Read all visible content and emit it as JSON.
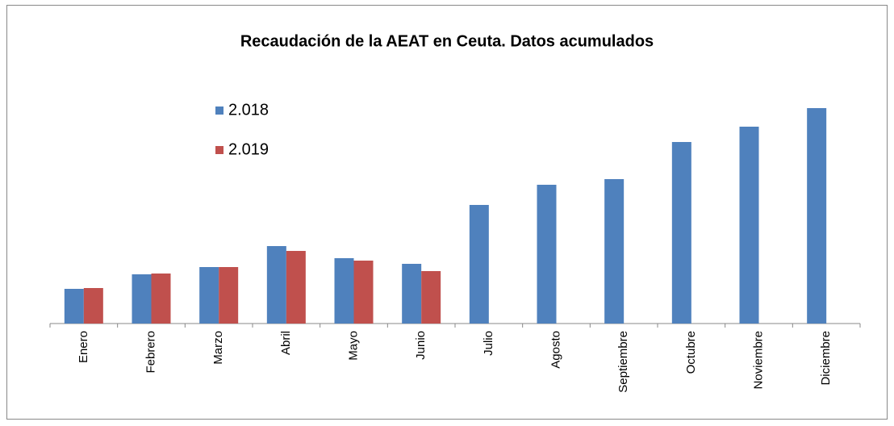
{
  "chart_data": {
    "type": "bar",
    "title": "Recaudación de la AEAT en Ceuta. Datos acumulados",
    "categories": [
      "Enero",
      "Febrero",
      "Marzo",
      "Abril",
      "Mayo",
      "Junio",
      "Julio",
      "Agosto",
      "Septiembre",
      "Octubre",
      "Noviembre",
      "Diciembre"
    ],
    "series": [
      {
        "name": "2.018",
        "color": "#4f81bd",
        "values": [
          43,
          61,
          70,
          96,
          81,
          74,
          147,
          172,
          179,
          225,
          244,
          267
        ]
      },
      {
        "name": "2.019",
        "color": "#c0504d",
        "values": [
          44,
          62,
          70,
          90,
          78,
          65,
          null,
          null,
          null,
          null,
          null,
          null
        ]
      }
    ]
  }
}
